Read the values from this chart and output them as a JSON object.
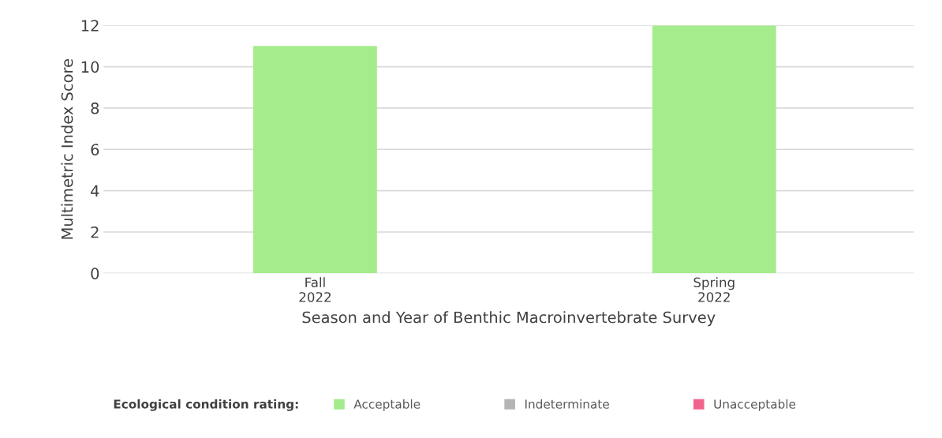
{
  "chart_data": {
    "type": "bar",
    "xlabel": "Season and Year of Benthic Macroinvertebrate Survey",
    "ylabel": "Multimetric Index Score",
    "legend_title": "Ecological condition rating:",
    "categories": [
      "Fall\n2022",
      "Spring\n2022"
    ],
    "series": [
      {
        "name": "Acceptable",
        "color": "#a4ec8c",
        "values": [
          11,
          12
        ]
      },
      {
        "name": "Indeterminate",
        "color": "#b4b4b4",
        "values": [
          null,
          null
        ]
      },
      {
        "name": "Unacceptable",
        "color": "#f0648c",
        "values": [
          null,
          null
        ]
      }
    ],
    "ylim": [
      0,
      12
    ],
    "yticks": [
      0,
      2,
      4,
      6,
      8,
      10,
      12
    ],
    "grid": "y",
    "legend": "bottom"
  }
}
